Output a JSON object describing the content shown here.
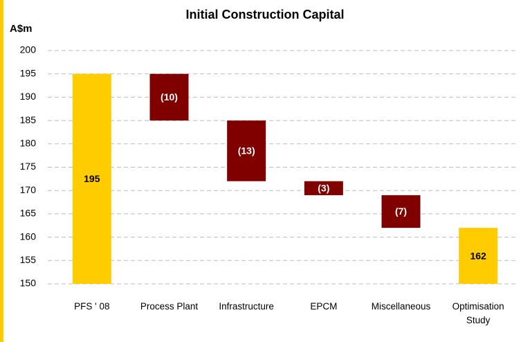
{
  "chart_data": {
    "type": "waterfall",
    "title": "Initial Construction Capital",
    "y_label": "A$m",
    "categories": [
      "PFS ' 08",
      "Process Plant",
      "Infrastructure",
      "EPCM",
      "Miscellaneous",
      "Optimisation Study"
    ],
    "values": [
      195,
      -10,
      -13,
      -3,
      -7,
      162
    ],
    "value_labels": [
      "195",
      "(10)",
      "(13)",
      "(3)",
      "(7)",
      "162"
    ],
    "total_color": "#FFCC00",
    "delta_color": "#800000",
    "ylim": [
      150,
      200
    ],
    "yticks": [
      150,
      155,
      160,
      165,
      170,
      175,
      180,
      185,
      190,
      195,
      200
    ],
    "grid": true
  }
}
